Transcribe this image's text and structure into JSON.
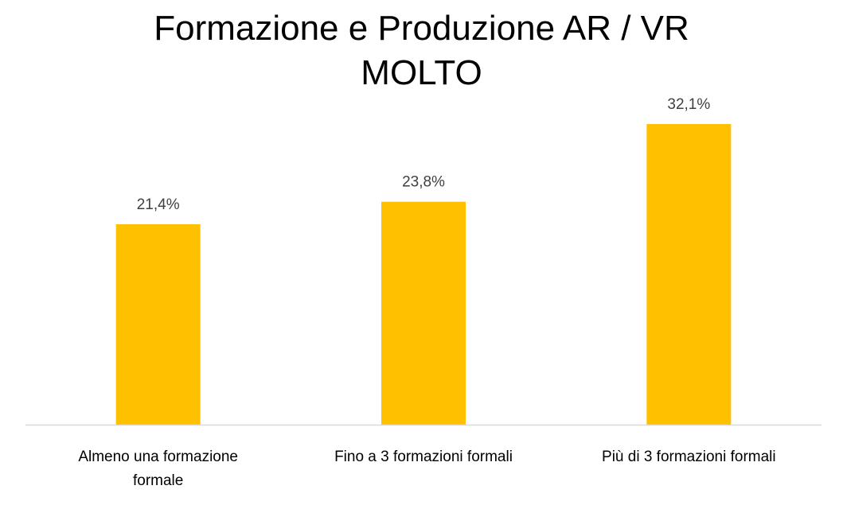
{
  "chart_data": {
    "type": "bar",
    "title": "Formazione e Produzione AR / VR",
    "subtitle": "MOLTO",
    "categories": [
      [
        "Almeno una formazione",
        "formale"
      ],
      [
        "Fino a 3 formazioni formali"
      ],
      [
        "Più di 3 formazioni formali"
      ]
    ],
    "values": [
      21.4,
      23.8,
      32.1
    ],
    "data_labels": [
      "21,4%",
      "23,8%",
      "32,1%"
    ],
    "ylim": [
      0,
      36
    ],
    "grid": false,
    "legend": "none",
    "bar_color": "#FFC000",
    "axis_color": "#D9D9D9"
  }
}
